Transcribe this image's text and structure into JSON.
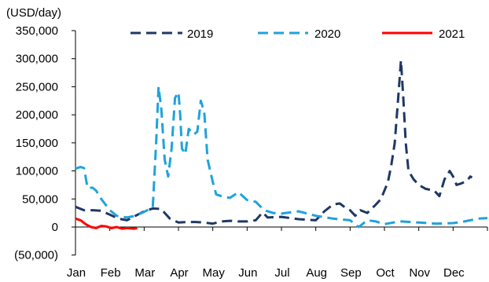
{
  "chart_data": {
    "type": "line",
    "unit_label": "(USD/day)",
    "y_ticks": [
      350000,
      300000,
      250000,
      200000,
      150000,
      100000,
      50000,
      0,
      -50000
    ],
    "y_tick_labels": [
      "350,000",
      "300,000",
      "250,000",
      "200,000",
      "150,000",
      "100,000",
      "50,000",
      "0",
      "(50,000)"
    ],
    "ylim": [
      -50000,
      350000
    ],
    "x_tick_labels": [
      "Jan",
      "Feb",
      "Mar",
      "Apr",
      "May",
      "Jun",
      "Jul",
      "Aug",
      "Sep",
      "Oct",
      "Nov",
      "Dec"
    ],
    "xlim": [
      0,
      12
    ],
    "legend_position": "top",
    "series": [
      {
        "name": "2019",
        "color": "#1f3864",
        "dash": "long",
        "points": [
          [
            0.0,
            36000
          ],
          [
            0.25,
            30000
          ],
          [
            0.5,
            30000
          ],
          [
            0.75,
            29000
          ],
          [
            1.0,
            22000
          ],
          [
            1.25,
            15000
          ],
          [
            1.5,
            12000
          ],
          [
            1.75,
            20000
          ],
          [
            2.0,
            28000
          ],
          [
            2.25,
            33000
          ],
          [
            2.5,
            32000
          ],
          [
            2.6,
            25000
          ],
          [
            2.75,
            15000
          ],
          [
            3.0,
            8000
          ],
          [
            3.25,
            9000
          ],
          [
            3.5,
            9000
          ],
          [
            3.75,
            8000
          ],
          [
            4.0,
            6000
          ],
          [
            4.25,
            10000
          ],
          [
            4.5,
            11000
          ],
          [
            4.75,
            10000
          ],
          [
            5.0,
            10000
          ],
          [
            5.25,
            12000
          ],
          [
            5.45,
            26000
          ],
          [
            5.6,
            17000
          ],
          [
            6.0,
            18000
          ],
          [
            6.25,
            16000
          ],
          [
            6.5,
            14000
          ],
          [
            6.75,
            13000
          ],
          [
            7.0,
            12000
          ],
          [
            7.25,
            28000
          ],
          [
            7.5,
            40000
          ],
          [
            7.7,
            42000
          ],
          [
            7.85,
            35000
          ],
          [
            8.0,
            30000
          ],
          [
            8.15,
            20000
          ],
          [
            8.3,
            30000
          ],
          [
            8.5,
            25000
          ],
          [
            8.75,
            40000
          ],
          [
            8.9,
            50000
          ],
          [
            9.0,
            65000
          ],
          [
            9.1,
            80000
          ],
          [
            9.2,
            110000
          ],
          [
            9.3,
            150000
          ],
          [
            9.4,
            230000
          ],
          [
            9.48,
            297000
          ],
          [
            9.55,
            230000
          ],
          [
            9.62,
            150000
          ],
          [
            9.7,
            100000
          ],
          [
            9.85,
            85000
          ],
          [
            10.0,
            75000
          ],
          [
            10.2,
            68000
          ],
          [
            10.45,
            65000
          ],
          [
            10.6,
            55000
          ],
          [
            10.75,
            85000
          ],
          [
            10.9,
            100000
          ],
          [
            11.0,
            90000
          ],
          [
            11.1,
            75000
          ],
          [
            11.25,
            78000
          ],
          [
            11.4,
            82000
          ],
          [
            11.5,
            90000
          ],
          [
            11.55,
            88000
          ]
        ]
      },
      {
        "name": "2020",
        "color": "#1fa2dc",
        "dash": "long",
        "points": [
          [
            0.0,
            104000
          ],
          [
            0.15,
            107000
          ],
          [
            0.25,
            105000
          ],
          [
            0.35,
            70000
          ],
          [
            0.5,
            70000
          ],
          [
            0.6,
            65000
          ],
          [
            0.75,
            50000
          ],
          [
            1.0,
            30000
          ],
          [
            1.2,
            20000
          ],
          [
            1.5,
            17000
          ],
          [
            1.75,
            20000
          ],
          [
            2.0,
            27000
          ],
          [
            2.25,
            35000
          ],
          [
            2.35,
            150000
          ],
          [
            2.42,
            250000
          ],
          [
            2.5,
            210000
          ],
          [
            2.6,
            120000
          ],
          [
            2.7,
            90000
          ],
          [
            2.8,
            140000
          ],
          [
            2.9,
            230000
          ],
          [
            3.0,
            240000
          ],
          [
            3.05,
            200000
          ],
          [
            3.1,
            140000
          ],
          [
            3.2,
            130000
          ],
          [
            3.3,
            175000
          ],
          [
            3.45,
            165000
          ],
          [
            3.55,
            170000
          ],
          [
            3.65,
            225000
          ],
          [
            3.75,
            205000
          ],
          [
            3.85,
            120000
          ],
          [
            4.0,
            80000
          ],
          [
            4.1,
            58000
          ],
          [
            4.25,
            55000
          ],
          [
            4.5,
            52000
          ],
          [
            4.75,
            62000
          ],
          [
            5.0,
            48000
          ],
          [
            5.25,
            45000
          ],
          [
            5.5,
            30000
          ],
          [
            5.75,
            25000
          ],
          [
            6.0,
            24000
          ],
          [
            6.5,
            28000
          ],
          [
            7.0,
            20000
          ],
          [
            7.5,
            15000
          ],
          [
            8.0,
            12000
          ],
          [
            8.25,
            0
          ],
          [
            8.5,
            12000
          ],
          [
            8.75,
            10000
          ],
          [
            9.0,
            5000
          ],
          [
            9.25,
            8000
          ],
          [
            9.5,
            10000
          ],
          [
            9.75,
            9000
          ],
          [
            10.0,
            8000
          ],
          [
            10.5,
            6000
          ],
          [
            11.0,
            7000
          ],
          [
            11.25,
            9000
          ],
          [
            11.5,
            12000
          ],
          [
            11.75,
            15000
          ],
          [
            12.0,
            16000
          ]
        ]
      },
      {
        "name": "2021",
        "color": "#ff0000",
        "dash": "solid",
        "points": [
          [
            0.0,
            15000
          ],
          [
            0.15,
            12000
          ],
          [
            0.3,
            5000
          ],
          [
            0.45,
            0
          ],
          [
            0.6,
            -2000
          ],
          [
            0.75,
            2000
          ],
          [
            0.9,
            1000
          ],
          [
            1.05,
            -2000
          ],
          [
            1.2,
            0
          ],
          [
            1.35,
            -3000
          ],
          [
            1.5,
            -2000
          ],
          [
            1.7,
            -3000
          ],
          [
            1.8,
            -2000
          ]
        ]
      }
    ]
  }
}
